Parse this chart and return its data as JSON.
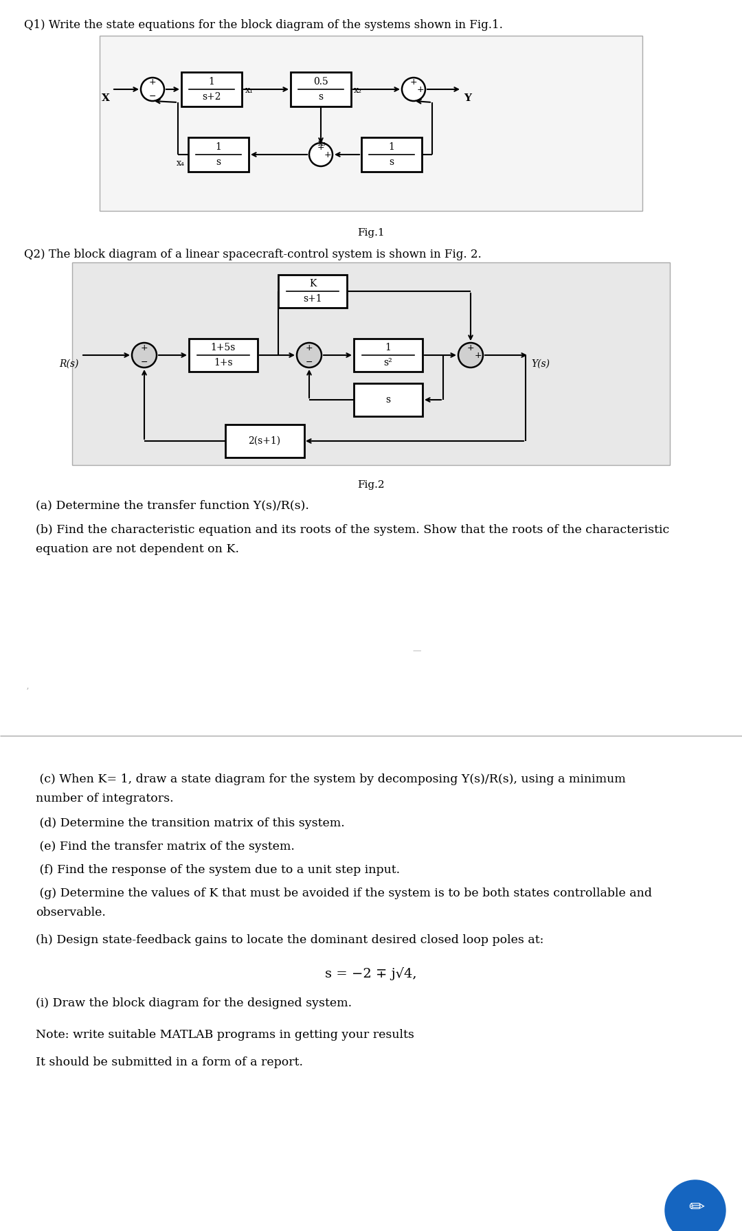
{
  "bg_color": "#ffffff",
  "page_width": 10.8,
  "page_height": 17.92,
  "q1_text": "Q1) Write the state equations for the block diagram of the systems shown in Fig.1.",
  "q2_text": "Q2) The block diagram of a linear spacecraft-control system is shown in Fig. 2.",
  "fig1_caption": "Fig.1",
  "fig2_caption": "Fig.2",
  "qa_text": "(a) Determine the transfer function Y(s)/R(s).",
  "qb_line1": "(b) Find the characteristic equation and its roots of the system. Show that the roots of the characteristic",
  "qb_line2": "equation are not dependent on K.",
  "qc_line1": " (c) When K= 1, draw a state diagram for the system by decomposing Y(s)/R(s), using a minimum",
  "qc_line2": "number of integrators.",
  "qd_text": " (d) Determine the transition matrix of this system.",
  "qe_text": " (e) Find the transfer matrix of the system.",
  "qf_text": " (f) Find the response of the system due to a unit step input.",
  "qg_line1": " (g) Determine the values of K that must be avoided if the system is to be both states controllable and",
  "qg_line2": "observable.",
  "qh_text": "(h) Design state-feedback gains to locate the dominant desired closed loop poles at:",
  "formula_text": "s = −2 ∓ j√4,",
  "qi_text": "(i) Draw the block diagram for the designed system.",
  "note_text": "Note: write suitable MATLAB programs in getting your results",
  "submit_text": "It should be submitted in a form of a report.",
  "fig1_bg": "#f5f5f5",
  "fig2_bg": "#e8e8e8",
  "box_edge": "#000000",
  "box_face": "#ffffff",
  "circle_edge": "#000000",
  "circle_face": "#d0d0d0",
  "separator_color": "#999999",
  "blue_circle_color": "#1565C0"
}
